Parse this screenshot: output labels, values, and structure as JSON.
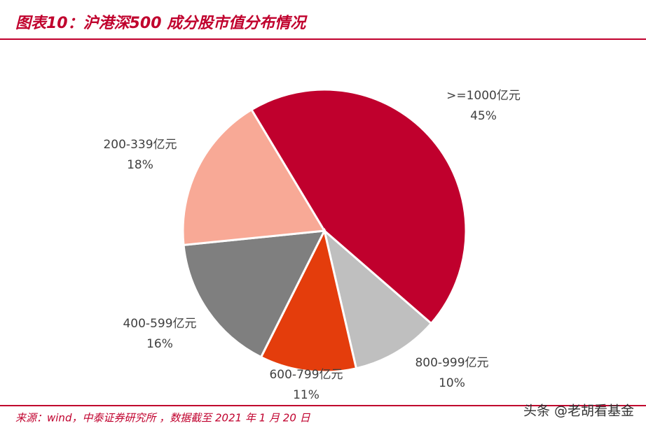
{
  "chart_data": {
    "type": "pie",
    "title": "图表10：沪港深500 成分股市值分布情况",
    "categories": [
      ">=1000亿元",
      "800-999亿元",
      "600-799亿元",
      "400-599亿元",
      "200-339亿元"
    ],
    "values": [
      45,
      10,
      11,
      16,
      18
    ],
    "value_labels": [
      "45%",
      "10%",
      "11%",
      "16%",
      "18%"
    ],
    "colors": [
      "#c0002d",
      "#bfbfbf",
      "#e43d0c",
      "#7f7f7f",
      "#f8a996"
    ],
    "source": "来源：wind，中泰证券研究所 ，数据截至 2021 年 1 月 20 日",
    "watermark": "头条 @老胡看基金"
  }
}
